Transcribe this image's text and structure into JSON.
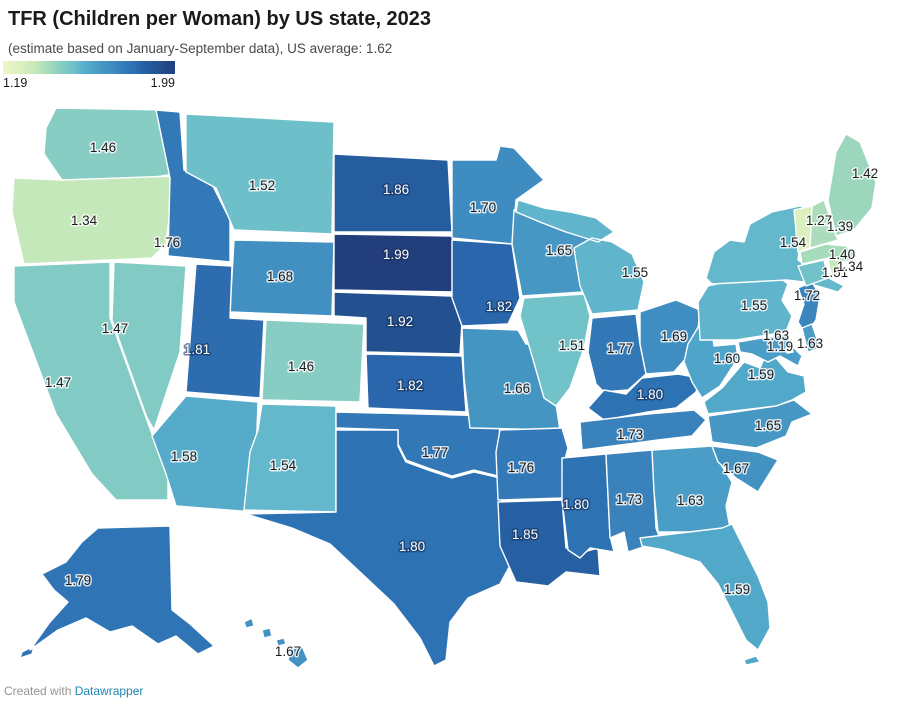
{
  "header": {
    "title": "TFR (Children per Woman) by US state, 2023",
    "subtitle": "(estimate based on January-September data), US average: 1.62"
  },
  "legend": {
    "min_label": "1.19",
    "max_label": "1.99"
  },
  "footer": {
    "prefix": "Created with ",
    "link_text": "Datawrapper"
  },
  "chart_data": {
    "type": "choropleth",
    "title": "TFR (Children per Woman) by US state, 2023",
    "subtitle": "(estimate based on January-September data), US average: 1.62",
    "metric": "Total fertility rate (children per woman)",
    "us_average": 1.62,
    "legend": {
      "min": 1.19,
      "max": 1.99,
      "position": "top-left"
    },
    "scale_stops": [
      [
        1.19,
        "#edf8c6"
      ],
      [
        1.27,
        "#dcf0bf"
      ],
      [
        1.34,
        "#c5e8ba"
      ],
      [
        1.42,
        "#9cd7bd"
      ],
      [
        1.47,
        "#82cbc4"
      ],
      [
        1.52,
        "#6dc0ca"
      ],
      [
        1.55,
        "#60b4cb"
      ],
      [
        1.6,
        "#4fa5c9"
      ],
      [
        1.65,
        "#4697c4"
      ],
      [
        1.7,
        "#3f8cc0"
      ],
      [
        1.76,
        "#3378b7"
      ],
      [
        1.8,
        "#2d72b3"
      ],
      [
        1.82,
        "#2a66ab"
      ],
      [
        1.86,
        "#255d9f"
      ],
      [
        1.92,
        "#23518f"
      ],
      [
        1.99,
        "#223e7c"
      ]
    ],
    "label_white_threshold": 1.8,
    "states": [
      {
        "abbr": "AK",
        "name": "Alaska",
        "value": 1.79,
        "label": "1.79"
      },
      {
        "abbr": "HI",
        "name": "Hawaii",
        "value": 1.67,
        "label": "1.67"
      },
      {
        "abbr": "WA",
        "name": "Washington",
        "value": 1.46,
        "label": "1.46"
      },
      {
        "abbr": "OR",
        "name": "Oregon",
        "value": 1.34,
        "label": "1.34"
      },
      {
        "abbr": "CA",
        "name": "California",
        "value": 1.47,
        "label": "1.47"
      },
      {
        "abbr": "NV",
        "name": "Nevada",
        "value": 1.47,
        "label": "1.47"
      },
      {
        "abbr": "ID",
        "name": "Idaho",
        "value": 1.76,
        "label": "1.76"
      },
      {
        "abbr": "MT",
        "name": "Montana",
        "value": 1.52,
        "label": "1.52"
      },
      {
        "abbr": "WY",
        "name": "Wyoming",
        "value": 1.68,
        "label": "1.68"
      },
      {
        "abbr": "UT",
        "name": "Utah",
        "value": 1.81,
        "label": "1.81"
      },
      {
        "abbr": "CO",
        "name": "Colorado",
        "value": 1.46,
        "label": "1.46"
      },
      {
        "abbr": "AZ",
        "name": "Arizona",
        "value": 1.58,
        "label": "1.58"
      },
      {
        "abbr": "NM",
        "name": "New Mexico",
        "value": 1.54,
        "label": "1.54"
      },
      {
        "abbr": "ND",
        "name": "North Dakota",
        "value": 1.86,
        "label": "1.86"
      },
      {
        "abbr": "SD",
        "name": "South Dakota",
        "value": 1.99,
        "label": "1.99"
      },
      {
        "abbr": "NE",
        "name": "Nebraska",
        "value": 1.92,
        "label": "1.92"
      },
      {
        "abbr": "KS",
        "name": "Kansas",
        "value": 1.82,
        "label": "1.82"
      },
      {
        "abbr": "OK",
        "name": "Oklahoma",
        "value": 1.77,
        "label": "1.77"
      },
      {
        "abbr": "TX",
        "name": "Texas",
        "value": 1.8,
        "label": "1.80"
      },
      {
        "abbr": "MN",
        "name": "Minnesota",
        "value": 1.7,
        "label": "1.70"
      },
      {
        "abbr": "IA",
        "name": "Iowa",
        "value": 1.82,
        "label": "1.82"
      },
      {
        "abbr": "MO",
        "name": "Missouri",
        "value": 1.66,
        "label": "1.66"
      },
      {
        "abbr": "AR",
        "name": "Arkansas",
        "value": 1.76,
        "label": "1.76"
      },
      {
        "abbr": "LA",
        "name": "Louisiana",
        "value": 1.85,
        "label": "1.85"
      },
      {
        "abbr": "WI",
        "name": "Wisconsin",
        "value": 1.65,
        "label": "1.65"
      },
      {
        "abbr": "IL",
        "name": "Illinois",
        "value": 1.51,
        "label": "1.51"
      },
      {
        "abbr": "MI",
        "name": "Michigan",
        "value": 1.55,
        "label": "1.55"
      },
      {
        "abbr": "IN",
        "name": "Indiana",
        "value": 1.77,
        "label": "1.77"
      },
      {
        "abbr": "OH",
        "name": "Ohio",
        "value": 1.69,
        "label": "1.69"
      },
      {
        "abbr": "KY",
        "name": "Kentucky",
        "value": 1.8,
        "label": "1.80"
      },
      {
        "abbr": "TN",
        "name": "Tennessee",
        "value": 1.73,
        "label": "1.73"
      },
      {
        "abbr": "MS",
        "name": "Mississippi",
        "value": 1.8,
        "label": "1.80"
      },
      {
        "abbr": "AL",
        "name": "Alabama",
        "value": 1.73,
        "label": "1.73"
      },
      {
        "abbr": "GA",
        "name": "Georgia",
        "value": 1.63,
        "label": "1.63"
      },
      {
        "abbr": "FL",
        "name": "Florida",
        "value": 1.59,
        "label": "1.59"
      },
      {
        "abbr": "SC",
        "name": "South Carolina",
        "value": 1.67,
        "label": "1.67"
      },
      {
        "abbr": "NC",
        "name": "North Carolina",
        "value": 1.65,
        "label": "1.65"
      },
      {
        "abbr": "VA",
        "name": "Virginia",
        "value": 1.59,
        "label": "1.59"
      },
      {
        "abbr": "WV",
        "name": "West Virginia",
        "value": 1.6,
        "label": "1.60"
      },
      {
        "abbr": "PA",
        "name": "Pennsylvania",
        "value": 1.55,
        "label": "1.55"
      },
      {
        "abbr": "NY",
        "name": "New York",
        "value": 1.54,
        "label": "1.54"
      },
      {
        "abbr": "NJ",
        "name": "New Jersey",
        "value": 1.72,
        "label": "1.72"
      },
      {
        "abbr": "DE",
        "name": "Delaware",
        "value": 1.63,
        "label": "1.63"
      },
      {
        "abbr": "MD",
        "name": "Maryland",
        "value": 1.63,
        "label": "1.63"
      },
      {
        "abbr": "DC",
        "name": "District of Columbia",
        "value": 1.19,
        "label": "1.19"
      },
      {
        "abbr": "CT",
        "name": "Connecticut",
        "value": 1.51,
        "label": "1.51"
      },
      {
        "abbr": "RI",
        "name": "Rhode Island",
        "value": 1.34,
        "label": "1.34"
      },
      {
        "abbr": "MA",
        "name": "Massachusetts",
        "value": 1.4,
        "label": "1.40"
      },
      {
        "abbr": "VT",
        "name": "Vermont",
        "value": 1.27,
        "label": "1.27"
      },
      {
        "abbr": "NH",
        "name": "New Hampshire",
        "value": 1.39,
        "label": "1.39"
      },
      {
        "abbr": "ME",
        "name": "Maine",
        "value": 1.42,
        "label": "1.42"
      }
    ]
  }
}
